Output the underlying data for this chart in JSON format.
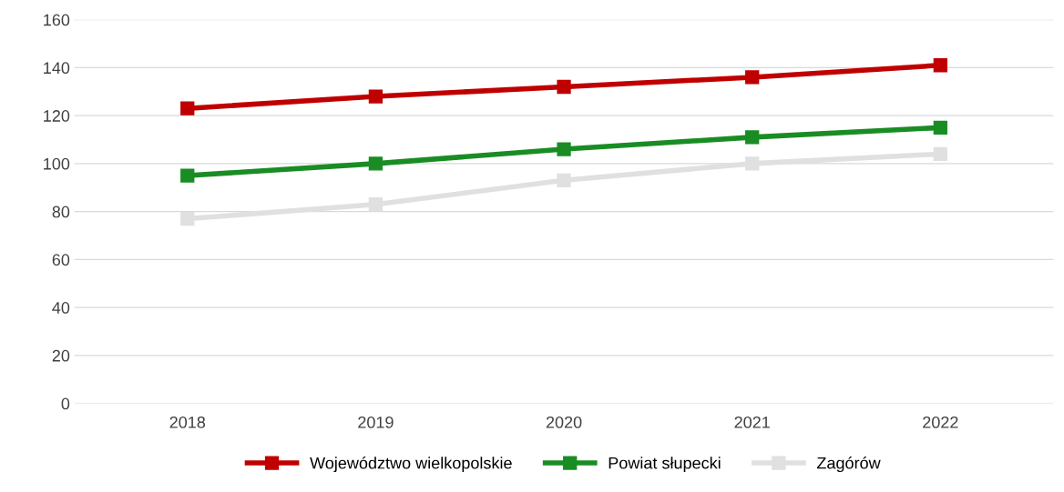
{
  "chart_data": {
    "type": "line",
    "categories": [
      "2018",
      "2019",
      "2020",
      "2021",
      "2022"
    ],
    "series": [
      {
        "name": "Województwo wielkopolskie",
        "color": "#c00000",
        "values": [
          123,
          128,
          132,
          136,
          141
        ]
      },
      {
        "name": "Powiat słupecki",
        "color": "#1a8c24",
        "values": [
          95,
          100,
          106,
          111,
          115
        ]
      },
      {
        "name": "Zagórów",
        "color": "#e0e0e0",
        "values": [
          77,
          83,
          93,
          100,
          104
        ]
      }
    ],
    "ylim": [
      0,
      160
    ],
    "yticks": [
      0,
      20,
      40,
      60,
      80,
      100,
      120,
      140,
      160
    ],
    "grid": "y",
    "legend": "bottom",
    "marker": "square",
    "line_style": "solid"
  }
}
